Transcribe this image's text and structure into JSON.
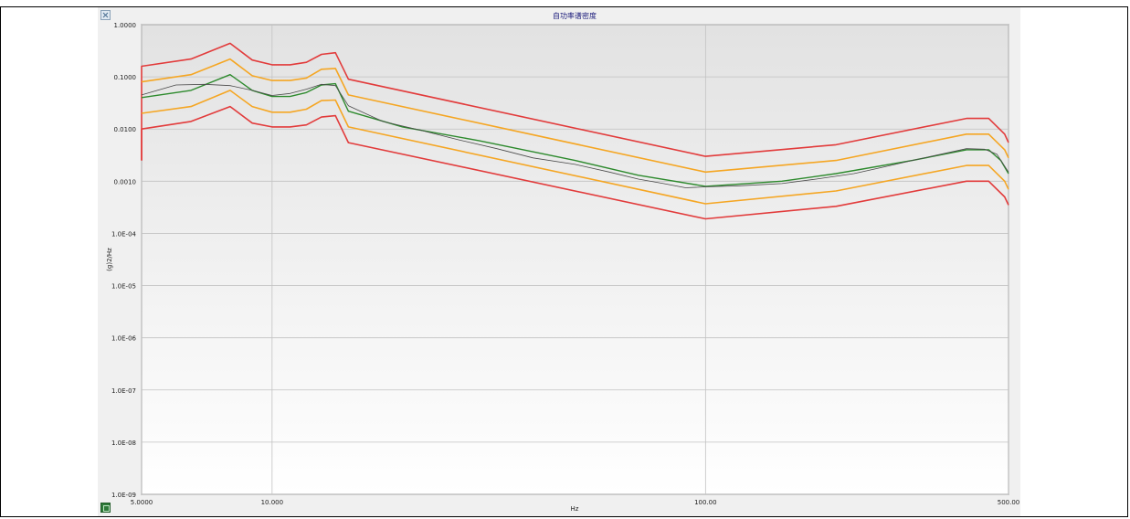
{
  "chart_data": {
    "type": "line",
    "title": "自功率谱密度",
    "xlabel": "Hz",
    "ylabel": "(g)2/Hz",
    "x_scale": "log",
    "y_scale": "log",
    "xlim": [
      5,
      500
    ],
    "ylim": [
      1e-09,
      1
    ],
    "grid": true,
    "x_tick_labels": [
      {
        "value": 5,
        "label": "5.0000"
      },
      {
        "value": 10,
        "label": "10.000"
      },
      {
        "value": 100,
        "label": "100.00"
      },
      {
        "value": 500,
        "label": "500.00"
      }
    ],
    "y_tick_labels": [
      {
        "value": 1,
        "label": "1.0000"
      },
      {
        "value": 0.1,
        "label": "0.1000"
      },
      {
        "value": 0.01,
        "label": "0.0100"
      },
      {
        "value": 0.001,
        "label": "0.0010"
      },
      {
        "value": 0.0001,
        "label": "1.0E-04"
      },
      {
        "value": 1e-05,
        "label": "1.0E-05"
      },
      {
        "value": 1e-06,
        "label": "1.0E-06"
      },
      {
        "value": 1e-07,
        "label": "1.0E-07"
      },
      {
        "value": 1e-08,
        "label": "1.0E-08"
      },
      {
        "value": 1e-09,
        "label": "1.0E-09"
      }
    ],
    "series": [
      {
        "color": "#e23b3b",
        "width": 1.6,
        "x": [
          5,
          5,
          6.5,
          8,
          9,
          10,
          11,
          12,
          13,
          14,
          15,
          100,
          200,
          400,
          450,
          490,
          500
        ],
        "y": [
          0.0025,
          0.16,
          0.22,
          0.44,
          0.21,
          0.17,
          0.17,
          0.19,
          0.27,
          0.29,
          0.09,
          0.003,
          0.005,
          0.016,
          0.016,
          0.008,
          0.0055
        ]
      },
      {
        "color": "#f5a623",
        "width": 1.6,
        "x": [
          5,
          6.5,
          8,
          9,
          10,
          11,
          12,
          13,
          14,
          15,
          100,
          200,
          400,
          450,
          490,
          500
        ],
        "y": [
          0.08,
          0.11,
          0.22,
          0.105,
          0.085,
          0.085,
          0.095,
          0.14,
          0.145,
          0.045,
          0.0015,
          0.0025,
          0.008,
          0.008,
          0.004,
          0.0028
        ]
      },
      {
        "color": "#f5a623",
        "width": 1.6,
        "x": [
          5,
          6.5,
          8,
          9,
          10,
          11,
          12,
          13,
          14,
          15,
          100,
          200,
          400,
          450,
          490,
          500
        ],
        "y": [
          0.02,
          0.027,
          0.055,
          0.027,
          0.021,
          0.021,
          0.024,
          0.035,
          0.036,
          0.011,
          0.00037,
          0.00065,
          0.002,
          0.002,
          0.001,
          0.0007
        ]
      },
      {
        "color": "#e23b3b",
        "width": 1.6,
        "x": [
          5,
          5,
          6.5,
          8,
          9,
          10,
          11,
          12,
          13,
          14,
          15,
          100,
          200,
          400,
          450,
          490,
          500
        ],
        "y": [
          0.0025,
          0.01,
          0.014,
          0.027,
          0.013,
          0.011,
          0.011,
          0.012,
          0.017,
          0.018,
          0.0055,
          0.00019,
          0.00033,
          0.001,
          0.001,
          0.0005,
          0.00035
        ]
      },
      {
        "color": "#2d8a2d",
        "width": 1.4,
        "x": [
          5,
          6.5,
          8,
          9,
          10,
          11,
          12,
          13,
          14,
          15,
          20,
          30,
          50,
          70,
          100,
          150,
          200,
          300,
          400,
          450,
          480,
          500
        ],
        "y": [
          0.04,
          0.055,
          0.11,
          0.055,
          0.042,
          0.042,
          0.05,
          0.07,
          0.074,
          0.022,
          0.011,
          0.006,
          0.0025,
          0.0013,
          0.0008,
          0.001,
          0.0014,
          0.0025,
          0.004,
          0.004,
          0.0025,
          0.0014
        ]
      },
      {
        "color": "#4a4a4a",
        "width": 0.8,
        "x": [
          5,
          6,
          7,
          8,
          9,
          10,
          11,
          12,
          13,
          14,
          15,
          18,
          22,
          27,
          33,
          40,
          50,
          60,
          70,
          80,
          90,
          100,
          120,
          150,
          180,
          220,
          260,
          300,
          350,
          400,
          440,
          470,
          500
        ],
        "y": [
          0.045,
          0.07,
          0.072,
          0.068,
          0.055,
          0.044,
          0.048,
          0.058,
          0.072,
          0.068,
          0.028,
          0.014,
          0.0095,
          0.0062,
          0.0042,
          0.0028,
          0.0021,
          0.0015,
          0.0011,
          0.0009,
          0.00075,
          0.00078,
          0.00082,
          0.0009,
          0.0011,
          0.0014,
          0.0019,
          0.0025,
          0.0033,
          0.0042,
          0.0041,
          0.0033,
          0.0015
        ]
      }
    ]
  }
}
